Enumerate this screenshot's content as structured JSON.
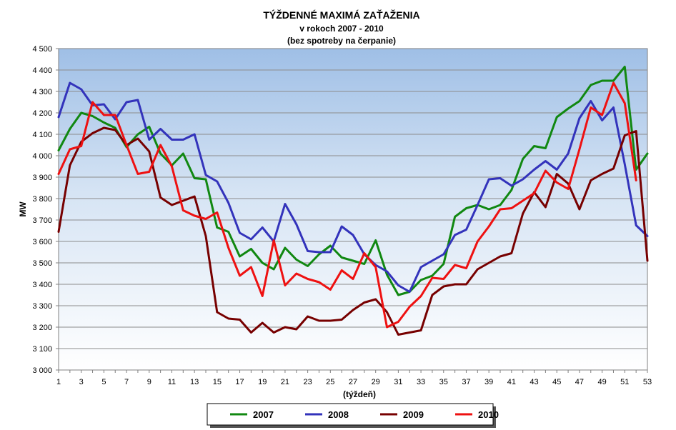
{
  "chart_data": {
    "type": "line",
    "title": "TÝŽDENNÉ  MAXIMÁ  ZAŤAŽENIA",
    "subtitle": "v rokoch  2007 - 2010",
    "subtitle2": "(bez spotreby na čerpanie)",
    "xlabel": "(týždeň)",
    "ylabel": "MW",
    "xlim": [
      1,
      53
    ],
    "ylim": [
      3000,
      4500
    ],
    "ytick_step": 100,
    "ytick_labels": [
      "3 000",
      "3 100",
      "3 200",
      "3 300",
      "3 400",
      "3 500",
      "3 600",
      "3 700",
      "3 800",
      "3 900",
      "4 000",
      "4 100",
      "4 200",
      "4 300",
      "4 400",
      "4 500"
    ],
    "xtick_labels": [
      "1",
      "3",
      "5",
      "7",
      "9",
      "11",
      "13",
      "15",
      "17",
      "19",
      "21",
      "23",
      "25",
      "27",
      "29",
      "31",
      "33",
      "35",
      "37",
      "39",
      "41",
      "43",
      "45",
      "47",
      "49",
      "51",
      "53"
    ],
    "grid": true,
    "legend_position": "bottom",
    "series": [
      {
        "name": "2007",
        "color": "#118811",
        "values": [
          4025,
          4125,
          4200,
          4185,
          4155,
          4130,
          4040,
          4100,
          4135,
          4010,
          3955,
          4010,
          3895,
          3890,
          3665,
          3645,
          3530,
          3565,
          3500,
          3470,
          3570,
          3515,
          3485,
          3540,
          3580,
          3525,
          3510,
          3495,
          3605,
          3445,
          3350,
          3365,
          3420,
          3440,
          3495,
          3715,
          3755,
          3770,
          3750,
          3770,
          3840,
          3985,
          4045,
          4035,
          4180,
          4220,
          4255,
          4330,
          4350,
          4350,
          4415,
          3935,
          4010
        ]
      },
      {
        "name": "2008",
        "color": "#3333bb",
        "values": [
          4180,
          4340,
          4310,
          4235,
          4240,
          4170,
          4250,
          4260,
          4075,
          4125,
          4075,
          4075,
          4100,
          3910,
          3880,
          3780,
          3640,
          3610,
          3665,
          3600,
          3775,
          3680,
          3555,
          3550,
          3550,
          3670,
          3630,
          3540,
          3490,
          3460,
          3395,
          3365,
          3480,
          3510,
          3540,
          3630,
          3655,
          3770,
          3890,
          3895,
          3860,
          3890,
          3935,
          3975,
          3935,
          4010,
          4175,
          4255,
          4165,
          4225,
          3960,
          3675,
          3625
        ]
      },
      {
        "name": "2009",
        "color": "#770000",
        "values": [
          3645,
          3955,
          4065,
          4105,
          4130,
          4120,
          4050,
          4080,
          4020,
          3805,
          3770,
          3790,
          3810,
          3625,
          3270,
          3240,
          3235,
          3175,
          3220,
          3175,
          3200,
          3190,
          3250,
          3230,
          3230,
          3235,
          3280,
          3315,
          3330,
          3270,
          3165,
          3175,
          3185,
          3350,
          3390,
          3400,
          3400,
          3470,
          3500,
          3530,
          3545,
          3730,
          3830,
          3760,
          3915,
          3870,
          3750,
          3885,
          3915,
          3940,
          4095,
          4115,
          3510
        ]
      },
      {
        "name": "2010",
        "color": "#ee1111",
        "values": [
          3915,
          4030,
          4045,
          4250,
          4190,
          4190,
          4050,
          3915,
          3925,
          4050,
          3950,
          3745,
          3720,
          3705,
          3735,
          3570,
          3440,
          3480,
          3345,
          3605,
          3395,
          3450,
          3425,
          3410,
          3375,
          3465,
          3425,
          3545,
          3480,
          3200,
          3225,
          3295,
          3345,
          3430,
          3425,
          3490,
          3475,
          3600,
          3670,
          3750,
          3755,
          3790,
          3825,
          3930,
          3875,
          3845,
          4030,
          4225,
          4190,
          4340,
          4245,
          3885,
          null
        ]
      }
    ]
  }
}
